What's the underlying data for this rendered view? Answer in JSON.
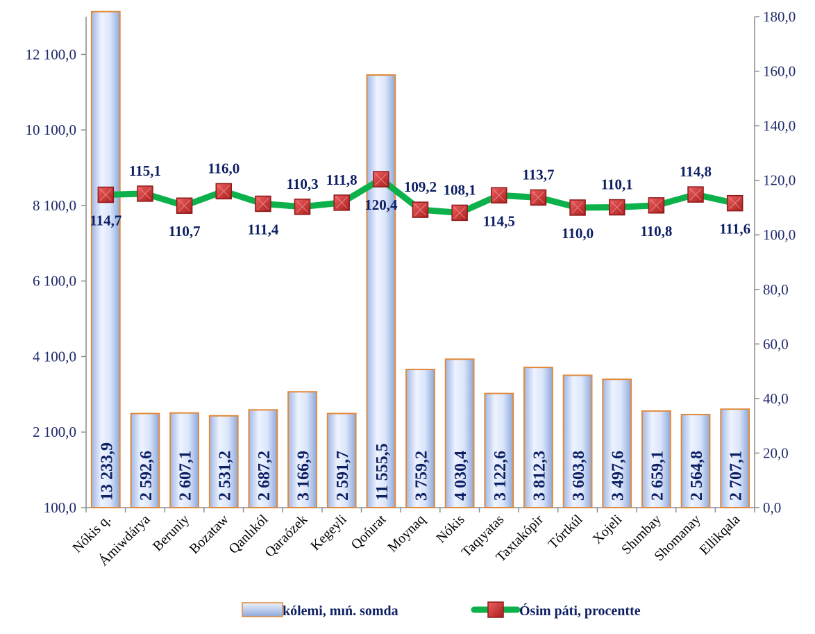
{
  "chart_data": {
    "type": "bar+line",
    "categories": [
      "Nókis q.",
      "Ámiwdárya",
      "Beruniy",
      "Bozataw",
      "Qanlıkól",
      "Qaraózek",
      "Kegeyli",
      "Qońırat",
      "Moynaq",
      "Nókis",
      "Taqıyatas",
      "Taxtakópir",
      "Tórtkúl",
      "Xojeli",
      "Shımbay",
      "Shomanay",
      "Ellikqala"
    ],
    "series": [
      {
        "name": "kólemi, mıń. somda",
        "type": "bar",
        "axis": "left",
        "values": [
          13233.9,
          2592.6,
          2607.1,
          2531.2,
          2687.2,
          3166.9,
          2591.7,
          11555.5,
          3759.2,
          4030.4,
          3122.6,
          3812.3,
          3603.8,
          3497.6,
          2659.1,
          2564.8,
          2707.1
        ],
        "labels": [
          "13 233,9",
          "2 592,6",
          "2 607,1",
          "2 531,2",
          "2 687,2",
          "3 166,9",
          "2 591,7",
          "11 555,5",
          "3 759,2",
          "4 030,4",
          "3 122,6",
          "3 812,3",
          "3 603,8",
          "3 497,6",
          "2 659,1",
          "2 564,8",
          "2 707,1"
        ]
      },
      {
        "name": "Ósim páti, procentte",
        "type": "line",
        "axis": "right",
        "values": [
          114.7,
          115.1,
          110.7,
          116.0,
          111.4,
          110.3,
          111.8,
          120.4,
          109.2,
          108.1,
          114.5,
          113.7,
          110.0,
          110.1,
          110.8,
          114.8,
          111.6
        ],
        "labels": [
          "114,7",
          "115,1",
          "110,7",
          "116,0",
          "111,4",
          "110,3",
          "111,8",
          "120,4",
          "109,2",
          "108,1",
          "114,5",
          "113,7",
          "110,0",
          "110,1",
          "110,8",
          "114,8",
          "111,6"
        ],
        "label_side": [
          "below",
          "above",
          "below",
          "above",
          "below",
          "above",
          "above",
          "below",
          "above",
          "above",
          "below",
          "above",
          "below",
          "above",
          "below",
          "above",
          "below"
        ]
      }
    ],
    "y_left": {
      "ticks": [
        100,
        2100,
        4100,
        6100,
        8100,
        10100,
        12100
      ],
      "tick_labels": [
        "100,0",
        "2 100,0",
        "4 100,0",
        "6 100,0",
        "8 100,0",
        "10 100,0",
        "12 100,0"
      ],
      "ylim": [
        100,
        13100
      ]
    },
    "y_right": {
      "ticks": [
        0,
        20,
        40,
        60,
        80,
        100,
        120,
        140,
        160,
        180
      ],
      "tick_labels": [
        "0,0",
        "20,0",
        "40,0",
        "60,0",
        "80,0",
        "100,0",
        "120,0",
        "140,0",
        "160,0",
        "180,0"
      ],
      "ylim": [
        0,
        180
      ]
    },
    "legend_position": "bottom",
    "grid": false,
    "colors": {
      "bar_fill_light": "#e6eeff",
      "bar_fill_mid": "#b6c9ef",
      "bar_outline": "#e08a3c",
      "line": "#0db14b",
      "marker_fill": "#d43232",
      "marker_edge": "#8c1a1a",
      "label_text": "#0d1f63",
      "axis_text": "#1f2a6b"
    }
  }
}
